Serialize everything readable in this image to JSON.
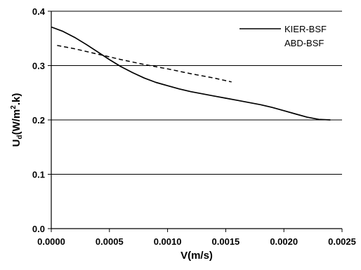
{
  "chart_data": {
    "type": "line",
    "xlabel": "V(m/s)",
    "ylabel": "U",
    "ylabel_sub": "d",
    "ylabel_unit_pre": "(W/m",
    "ylabel_sup": "2",
    "ylabel_unit_post": ".k)",
    "xlim": [
      0.0,
      0.0025
    ],
    "ylim": [
      0.0,
      0.4
    ],
    "x_ticks": [
      "0.0000",
      "0.0005",
      "0.0010",
      "0.0015",
      "0.0020",
      "0.0025"
    ],
    "x_tick_values": [
      0.0,
      0.0005,
      0.001,
      0.0015,
      0.002,
      0.0025
    ],
    "y_ticks": [
      "0.0",
      "0.1",
      "0.2",
      "0.3",
      "0.4"
    ],
    "y_tick_values": [
      0.0,
      0.1,
      0.2,
      0.3,
      0.4
    ],
    "grid": "horizontal",
    "legend_position": "top-right",
    "series": [
      {
        "name": "KIER-BSF",
        "style": "solid",
        "color": "#000000",
        "x": [
          0.0,
          0.0001,
          0.0002,
          0.0003,
          0.0004,
          0.0005,
          0.0006,
          0.0007,
          0.0008,
          0.0009,
          0.001,
          0.0011,
          0.0012,
          0.0013,
          0.0014,
          0.0015,
          0.0016,
          0.0017,
          0.0018,
          0.0019,
          0.002,
          0.0021,
          0.0022,
          0.0023,
          0.0024
        ],
        "y": [
          0.371,
          0.363,
          0.352,
          0.339,
          0.325,
          0.311,
          0.298,
          0.287,
          0.277,
          0.269,
          0.263,
          0.257,
          0.252,
          0.248,
          0.244,
          0.24,
          0.236,
          0.232,
          0.228,
          0.223,
          0.217,
          0.211,
          0.205,
          0.201,
          0.2
        ]
      },
      {
        "name": "ABD-BSF",
        "style": "dashed",
        "color": "#000000",
        "x": [
          5e-05,
          0.0002,
          0.0004,
          0.0006,
          0.0008,
          0.001,
          0.0012,
          0.0014,
          0.00155
        ],
        "y": [
          0.337,
          0.331,
          0.321,
          0.311,
          0.302,
          0.294,
          0.285,
          0.277,
          0.27
        ]
      }
    ]
  }
}
